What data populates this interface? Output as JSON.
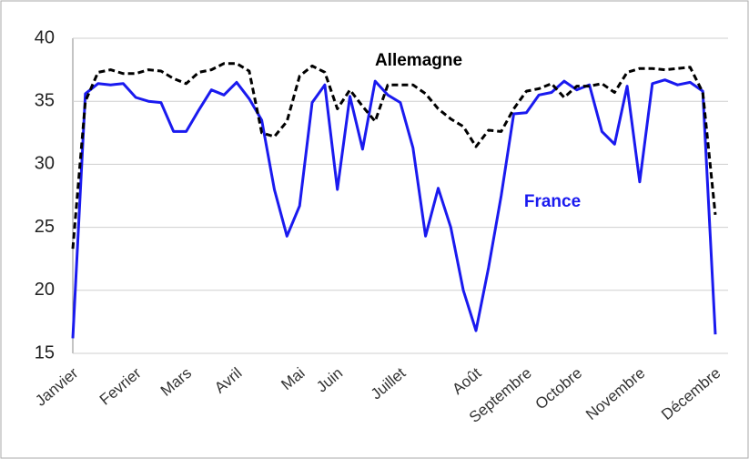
{
  "chart_data": {
    "type": "line",
    "categories": [
      "Janvier",
      null,
      null,
      null,
      null,
      "Fevrier",
      null,
      null,
      null,
      "Mars",
      null,
      null,
      null,
      "Avril",
      null,
      null,
      null,
      null,
      "Mai",
      null,
      null,
      "Juin",
      null,
      null,
      null,
      null,
      "Juillet",
      null,
      null,
      null,
      null,
      null,
      "Août",
      null,
      null,
      null,
      "Septembre",
      null,
      null,
      null,
      "Octobre",
      null,
      null,
      null,
      null,
      "Novembre",
      null,
      null,
      null,
      null,
      null,
      "Décembre"
    ],
    "series": [
      {
        "name": "France",
        "color": "#1a1aef",
        "linestyle": "solid",
        "values": [
          16.2,
          35.6,
          36.4,
          36.3,
          36.4,
          35.3,
          35.0,
          34.9,
          32.6,
          32.6,
          34.3,
          35.9,
          35.5,
          36.5,
          35.2,
          33.5,
          28.0,
          24.3,
          26.7,
          34.9,
          36.3,
          28.0,
          35.4,
          31.2,
          36.6,
          35.5,
          34.9,
          31.3,
          24.3,
          28.1,
          25.0,
          20.0,
          16.8,
          21.8,
          27.5,
          34.0,
          34.1,
          35.5,
          35.7,
          36.6,
          35.9,
          36.3,
          32.6,
          31.6,
          36.2,
          28.6,
          36.4,
          36.7,
          36.3,
          36.5,
          35.8,
          16.5
        ]
      },
      {
        "name": "Allemagne",
        "color": "#000000",
        "linestyle": "dashed",
        "values": [
          23.3,
          35.0,
          37.3,
          37.5,
          37.2,
          37.2,
          37.5,
          37.4,
          36.8,
          36.4,
          37.3,
          37.5,
          38.0,
          38.0,
          37.4,
          32.5,
          32.2,
          33.4,
          37.0,
          37.8,
          37.3,
          34.4,
          35.9,
          34.6,
          33.4,
          36.3,
          36.3,
          36.3,
          35.6,
          34.4,
          33.6,
          33.0,
          31.4,
          32.7,
          32.6,
          34.4,
          35.8,
          36.0,
          36.4,
          35.3,
          36.2,
          36.2,
          36.4,
          35.7,
          37.3,
          37.6,
          37.6,
          37.5,
          37.6,
          37.7,
          35.7,
          26.0
        ]
      }
    ],
    "ylim": [
      15,
      40
    ],
    "yticks": [
      15,
      20,
      25,
      30,
      35,
      40
    ],
    "grid": true
  }
}
